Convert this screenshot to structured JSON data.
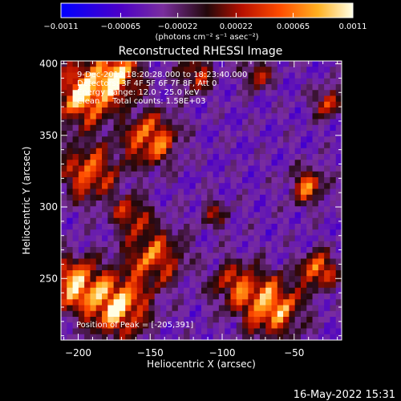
{
  "chart_data": {
    "type": "heatmap",
    "title": "Reconstructed RHESSI Image",
    "xlabel": "Heliocentric X (arcsec)",
    "ylabel": "Heliocentric Y (arcsec)",
    "xlim": [
      -212,
      -17
    ],
    "ylim": [
      207,
      402
    ],
    "x_ticks": [
      -200,
      -150,
      -100,
      -50
    ],
    "x_tick_labels": [
      "−200",
      "−150",
      "−100",
      "−50"
    ],
    "y_ticks": [
      250,
      300,
      350,
      400
    ],
    "y_tick_labels": [
      "250",
      "300",
      "350",
      "400"
    ],
    "colorbar": {
      "min": -0.0011,
      "max": 0.0011,
      "ticks": [
        -0.0011,
        -0.00065,
        -0.00022,
        0.00022,
        0.00065,
        0.0011
      ],
      "tick_labels": [
        "−0.0011",
        "−0.00065",
        "−0.00022",
        "0.00022",
        "0.00065",
        "0.0011"
      ],
      "units_label": "(photons cm⁻² s⁻¹ asec⁻²)",
      "colors": [
        "#0000ff",
        "#4b00c8",
        "#7a2e9e",
        "#22080a",
        "#b81000",
        "#ff4c00",
        "#ffb020",
        "#ffffe6"
      ]
    },
    "info_lines": [
      "9-Dec-2012 18:20:28.000 to 18:23:40.000",
      "Detectors: 3F 4F 5F 6F 7F 8F, Att 0",
      "Energy Range: 12.0 - 25.0 keV",
      "Clean     Total counts: 1.58E+03"
    ],
    "peak_label": "Position of Peak = [-205,391]",
    "grid": false
  },
  "timestamp": "16-May-2022 15:31"
}
